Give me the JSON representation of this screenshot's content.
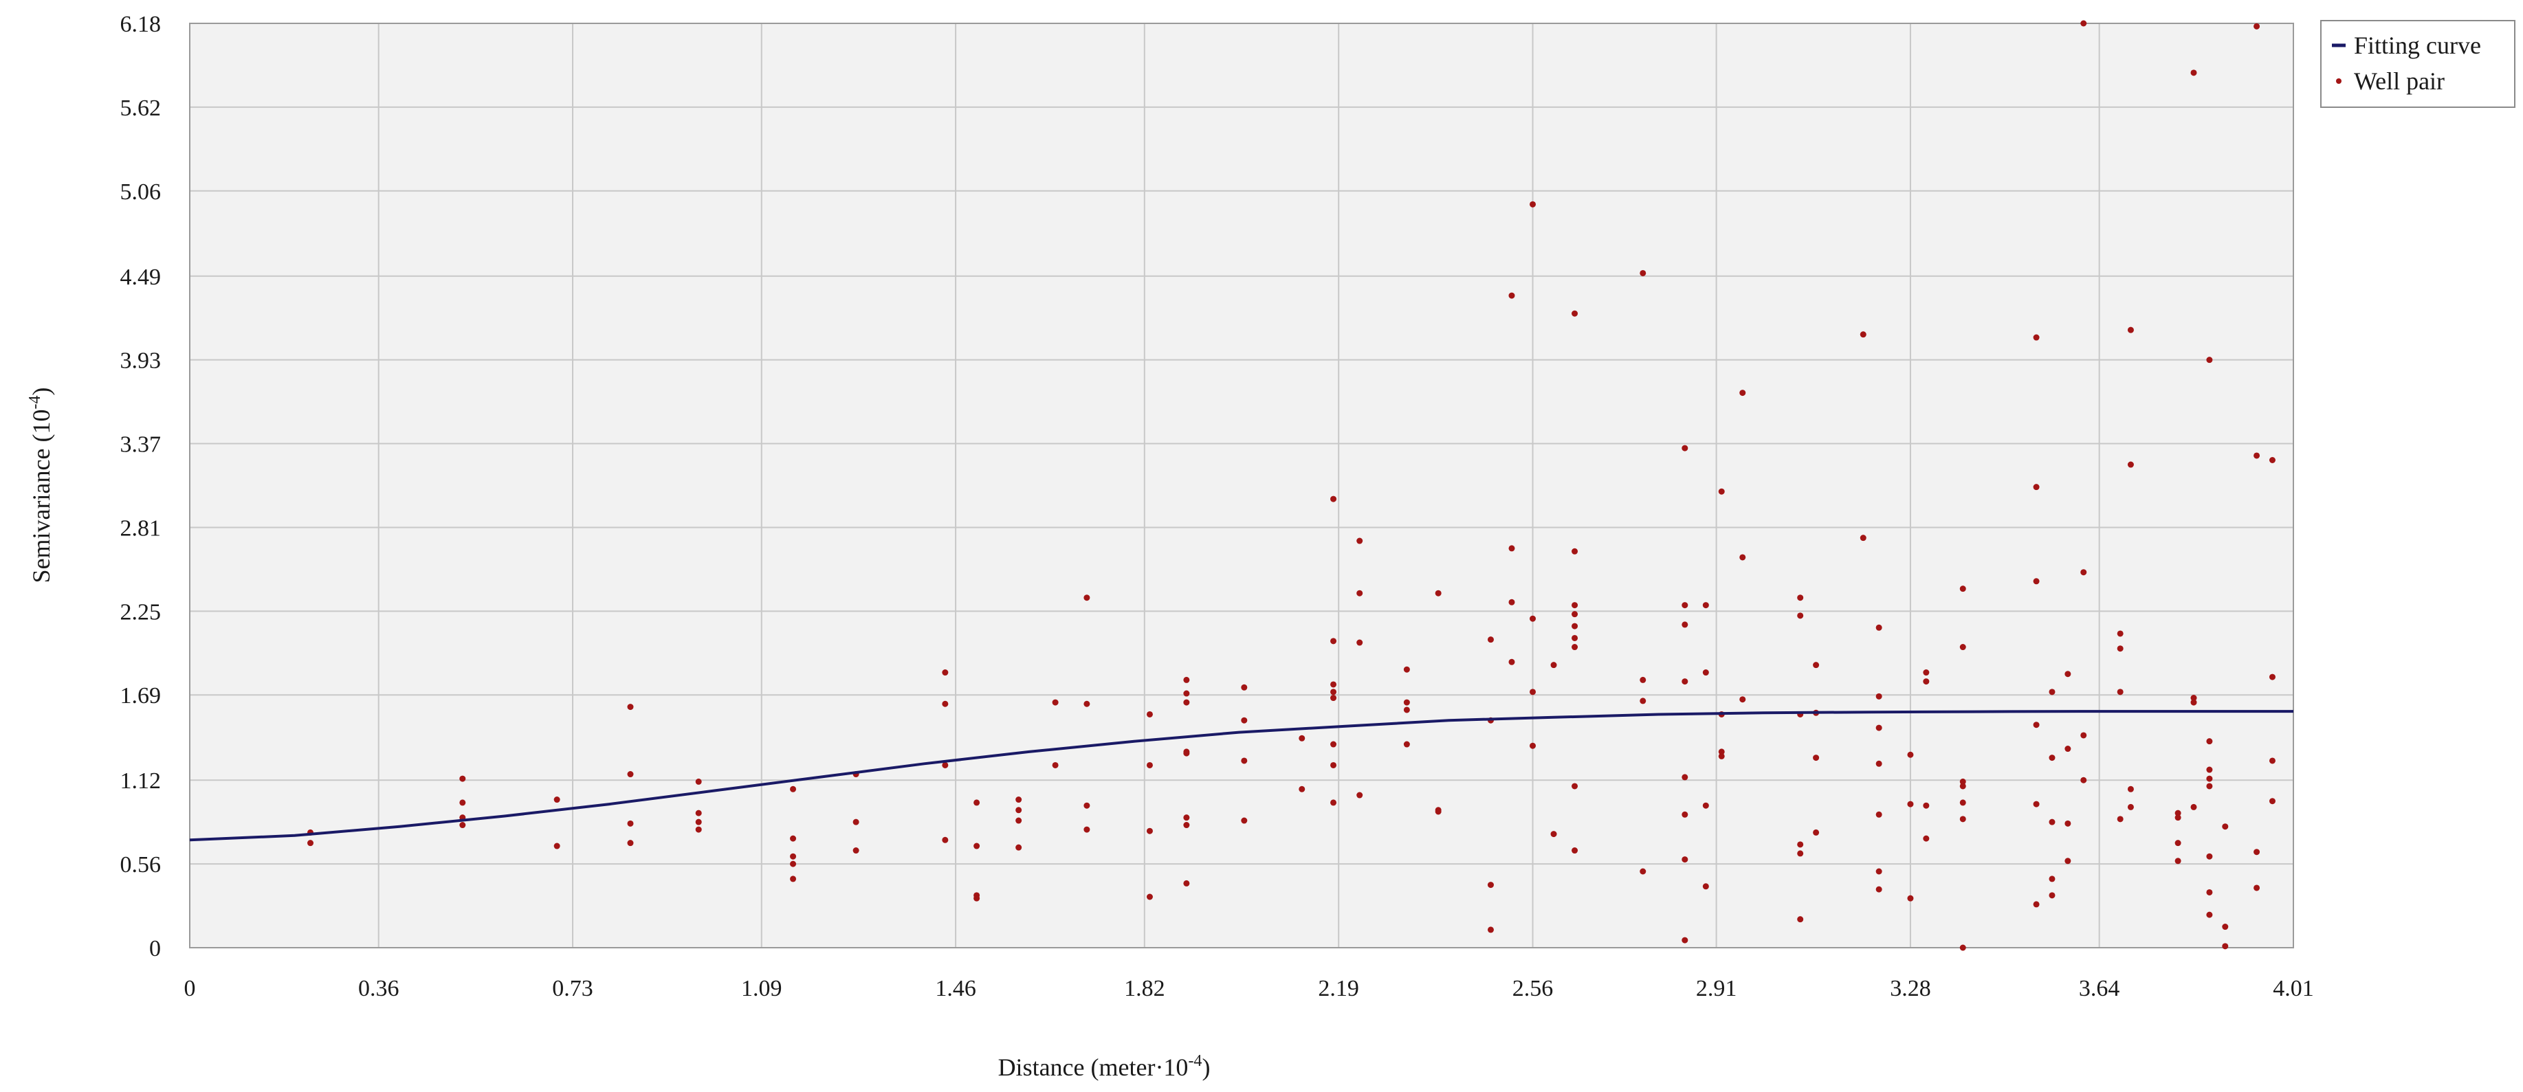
{
  "chart_data": {
    "type": "scatter",
    "xlabel": "Distance (meter·10",
    "xlabel_exp": "-4",
    "xlabel_close": ")",
    "ylabel": "Semivariance (10",
    "ylabel_exp": "-4",
    "ylabel_close": ")",
    "xlim": [
      0,
      4.01
    ],
    "ylim": [
      0,
      6.18
    ],
    "x_ticks": [
      0,
      0.36,
      0.73,
      1.09,
      1.46,
      1.82,
      2.19,
      2.56,
      2.91,
      3.28,
      3.64,
      4.01
    ],
    "x_tick_labels": [
      "0",
      "0.36",
      "0.73",
      "1.09",
      "1.46",
      "1.82",
      "2.19",
      "2.56",
      "2.91",
      "3.28",
      "3.64",
      "4.01"
    ],
    "y_ticks": [
      0,
      0.56,
      1.12,
      1.69,
      2.25,
      2.81,
      3.37,
      3.93,
      4.49,
      5.06,
      5.62,
      6.18
    ],
    "y_tick_labels": [
      "0",
      "0.56",
      "1.12",
      "1.69",
      "2.25",
      "2.81",
      "3.37",
      "3.93",
      "4.49",
      "5.06",
      "5.62",
      "6.18"
    ],
    "grid": true,
    "legend_position": "top-right outside",
    "colors": {
      "curve": "#1a1a66",
      "points": "#a31515",
      "plot_bg": "#f2f2f2",
      "grid": "#c8c8c8"
    },
    "series": [
      {
        "name": "Fitting curve",
        "kind": "line",
        "x": [
          0,
          0.2,
          0.4,
          0.6,
          0.8,
          1.0,
          1.2,
          1.4,
          1.6,
          1.8,
          2.0,
          2.2,
          2.4,
          2.6,
          2.8,
          3.0,
          3.2,
          3.4,
          3.6,
          3.8,
          4.01
        ],
        "y": [
          0.72,
          0.75,
          0.81,
          0.88,
          0.96,
          1.05,
          1.14,
          1.23,
          1.31,
          1.38,
          1.44,
          1.48,
          1.52,
          1.54,
          1.56,
          1.57,
          1.575,
          1.578,
          1.58,
          1.58,
          1.58
        ]
      },
      {
        "name": "Well pair",
        "kind": "scatter",
        "points": [
          [
            0.23,
            0.77
          ],
          [
            0.23,
            0.7
          ],
          [
            0.52,
            1.13
          ],
          [
            0.52,
            0.97
          ],
          [
            0.52,
            0.87
          ],
          [
            0.52,
            0.82
          ],
          [
            0.7,
            0.99
          ],
          [
            0.7,
            0.68
          ],
          [
            0.84,
            1.61
          ],
          [
            0.84,
            1.16
          ],
          [
            0.84,
            0.83
          ],
          [
            0.84,
            0.7
          ],
          [
            0.97,
            1.11
          ],
          [
            0.97,
            0.9
          ],
          [
            0.97,
            0.84
          ],
          [
            0.97,
            0.79
          ],
          [
            1.15,
            1.06
          ],
          [
            1.15,
            0.73
          ],
          [
            1.15,
            0.61
          ],
          [
            1.15,
            0.56
          ],
          [
            1.15,
            0.46
          ],
          [
            1.27,
            1.16
          ],
          [
            1.27,
            0.84
          ],
          [
            1.27,
            0.65
          ],
          [
            1.44,
            1.84
          ],
          [
            1.44,
            1.63
          ],
          [
            1.44,
            1.22
          ],
          [
            1.44,
            0.72
          ],
          [
            1.5,
            0.97
          ],
          [
            1.5,
            0.68
          ],
          [
            1.5,
            0.35
          ],
          [
            1.5,
            0.33
          ],
          [
            1.58,
            0.99
          ],
          [
            1.58,
            0.92
          ],
          [
            1.58,
            0.85
          ],
          [
            1.58,
            0.67
          ],
          [
            1.65,
            1.64
          ],
          [
            1.65,
            1.22
          ],
          [
            1.71,
            2.34
          ],
          [
            1.71,
            1.63
          ],
          [
            1.71,
            0.95
          ],
          [
            1.71,
            0.79
          ],
          [
            1.83,
            1.56
          ],
          [
            1.83,
            1.22
          ],
          [
            1.83,
            0.78
          ],
          [
            1.83,
            0.34
          ],
          [
            1.9,
            1.79
          ],
          [
            1.9,
            1.7
          ],
          [
            1.9,
            1.64
          ],
          [
            1.9,
            1.31
          ],
          [
            1.9,
            1.3
          ],
          [
            1.9,
            0.87
          ],
          [
            1.9,
            0.82
          ],
          [
            1.9,
            0.43
          ],
          [
            2.01,
            1.74
          ],
          [
            2.01,
            1.52
          ],
          [
            2.01,
            1.25
          ],
          [
            2.01,
            0.85
          ],
          [
            2.12,
            1.4
          ],
          [
            2.12,
            1.06
          ],
          [
            2.18,
            3.0
          ],
          [
            2.18,
            2.05
          ],
          [
            2.18,
            1.76
          ],
          [
            2.18,
            1.71
          ],
          [
            2.18,
            1.67
          ],
          [
            2.18,
            1.36
          ],
          [
            2.18,
            1.22
          ],
          [
            2.18,
            0.97
          ],
          [
            2.23,
            2.72
          ],
          [
            2.23,
            2.37
          ],
          [
            2.23,
            2.04
          ],
          [
            2.23,
            1.02
          ],
          [
            2.32,
            1.86
          ],
          [
            2.32,
            1.64
          ],
          [
            2.32,
            1.59
          ],
          [
            2.32,
            1.36
          ],
          [
            2.38,
            2.37
          ],
          [
            2.38,
            0.92
          ],
          [
            2.38,
            0.91
          ],
          [
            2.48,
            2.06
          ],
          [
            2.48,
            1.52
          ],
          [
            2.48,
            0.42
          ],
          [
            2.48,
            0.12
          ],
          [
            2.52,
            4.36
          ],
          [
            2.52,
            2.67
          ],
          [
            2.52,
            2.31
          ],
          [
            2.52,
            1.91
          ],
          [
            2.56,
            4.97
          ],
          [
            2.56,
            2.2
          ],
          [
            2.56,
            1.71
          ],
          [
            2.56,
            1.35
          ],
          [
            2.6,
            1.89
          ],
          [
            2.6,
            0.76
          ],
          [
            2.64,
            4.24
          ],
          [
            2.64,
            2.65
          ],
          [
            2.64,
            2.29
          ],
          [
            2.64,
            2.23
          ],
          [
            2.64,
            2.15
          ],
          [
            2.64,
            2.07
          ],
          [
            2.64,
            2.01
          ],
          [
            2.64,
            1.08
          ],
          [
            2.64,
            0.65
          ],
          [
            2.77,
            4.51
          ],
          [
            2.77,
            1.79
          ],
          [
            2.77,
            1.65
          ],
          [
            2.77,
            0.51
          ],
          [
            2.85,
            3.34
          ],
          [
            2.85,
            2.29
          ],
          [
            2.85,
            2.16
          ],
          [
            2.85,
            1.78
          ],
          [
            2.85,
            1.14
          ],
          [
            2.85,
            0.89
          ],
          [
            2.85,
            0.59
          ],
          [
            2.85,
            0.05
          ],
          [
            2.89,
            2.29
          ],
          [
            2.89,
            1.84
          ],
          [
            2.89,
            0.95
          ],
          [
            2.89,
            0.41
          ],
          [
            2.92,
            3.05
          ],
          [
            2.92,
            1.56
          ],
          [
            2.92,
            1.31
          ],
          [
            2.92,
            1.28
          ],
          [
            2.96,
            3.71
          ],
          [
            2.96,
            2.61
          ],
          [
            2.96,
            1.66
          ],
          [
            3.07,
            2.34
          ],
          [
            3.07,
            2.22
          ],
          [
            3.07,
            1.56
          ],
          [
            3.07,
            0.69
          ],
          [
            3.07,
            0.63
          ],
          [
            3.07,
            0.19
          ],
          [
            3.1,
            1.89
          ],
          [
            3.1,
            1.57
          ],
          [
            3.1,
            1.27
          ],
          [
            3.1,
            0.77
          ],
          [
            3.19,
            4.1
          ],
          [
            3.19,
            2.74
          ],
          [
            3.22,
            2.14
          ],
          [
            3.22,
            1.68
          ],
          [
            3.22,
            1.47
          ],
          [
            3.22,
            1.23
          ],
          [
            3.22,
            0.89
          ],
          [
            3.22,
            0.51
          ],
          [
            3.22,
            0.39
          ],
          [
            3.28,
            1.29
          ],
          [
            3.28,
            0.96
          ],
          [
            3.28,
            0.33
          ],
          [
            3.31,
            1.84
          ],
          [
            3.31,
            1.78
          ],
          [
            3.31,
            0.95
          ],
          [
            3.31,
            0.73
          ],
          [
            3.38,
            2.4
          ],
          [
            3.38,
            2.01
          ],
          [
            3.38,
            1.11
          ],
          [
            3.38,
            1.08
          ],
          [
            3.38,
            0.97
          ],
          [
            3.38,
            0.86
          ],
          [
            3.38,
            0.0
          ],
          [
            3.52,
            4.08
          ],
          [
            3.52,
            3.08
          ],
          [
            3.52,
            2.45
          ],
          [
            3.52,
            1.49
          ],
          [
            3.52,
            0.96
          ],
          [
            3.52,
            0.29
          ],
          [
            3.55,
            1.71
          ],
          [
            3.55,
            1.27
          ],
          [
            3.55,
            0.84
          ],
          [
            3.55,
            0.46
          ],
          [
            3.55,
            0.35
          ],
          [
            3.58,
            1.83
          ],
          [
            3.58,
            1.33
          ],
          [
            3.58,
            0.83
          ],
          [
            3.58,
            0.58
          ],
          [
            3.61,
            6.18
          ],
          [
            3.61,
            2.51
          ],
          [
            3.61,
            1.42
          ],
          [
            3.61,
            1.12
          ],
          [
            3.68,
            2.1
          ],
          [
            3.68,
            2.0
          ],
          [
            3.68,
            1.71
          ],
          [
            3.68,
            0.86
          ],
          [
            3.7,
            4.13
          ],
          [
            3.7,
            3.23
          ],
          [
            3.7,
            1.06
          ],
          [
            3.7,
            0.94
          ],
          [
            3.79,
            0.9
          ],
          [
            3.79,
            0.87
          ],
          [
            3.79,
            0.7
          ],
          [
            3.79,
            0.58
          ],
          [
            3.82,
            5.85
          ],
          [
            3.82,
            1.67
          ],
          [
            3.82,
            1.64
          ],
          [
            3.82,
            0.94
          ],
          [
            3.85,
            3.93
          ],
          [
            3.85,
            1.38
          ],
          [
            3.85,
            1.19
          ],
          [
            3.85,
            1.13
          ],
          [
            3.85,
            1.08
          ],
          [
            3.85,
            0.61
          ],
          [
            3.85,
            0.37
          ],
          [
            3.85,
            0.22
          ],
          [
            3.88,
            0.81
          ],
          [
            3.88,
            0.14
          ],
          [
            3.88,
            0.01
          ],
          [
            3.94,
            6.16
          ],
          [
            3.94,
            3.29
          ],
          [
            3.94,
            0.64
          ],
          [
            3.94,
            0.4
          ],
          [
            3.97,
            3.26
          ],
          [
            3.97,
            1.81
          ],
          [
            3.97,
            1.25
          ],
          [
            3.97,
            0.98
          ]
        ]
      }
    ]
  }
}
